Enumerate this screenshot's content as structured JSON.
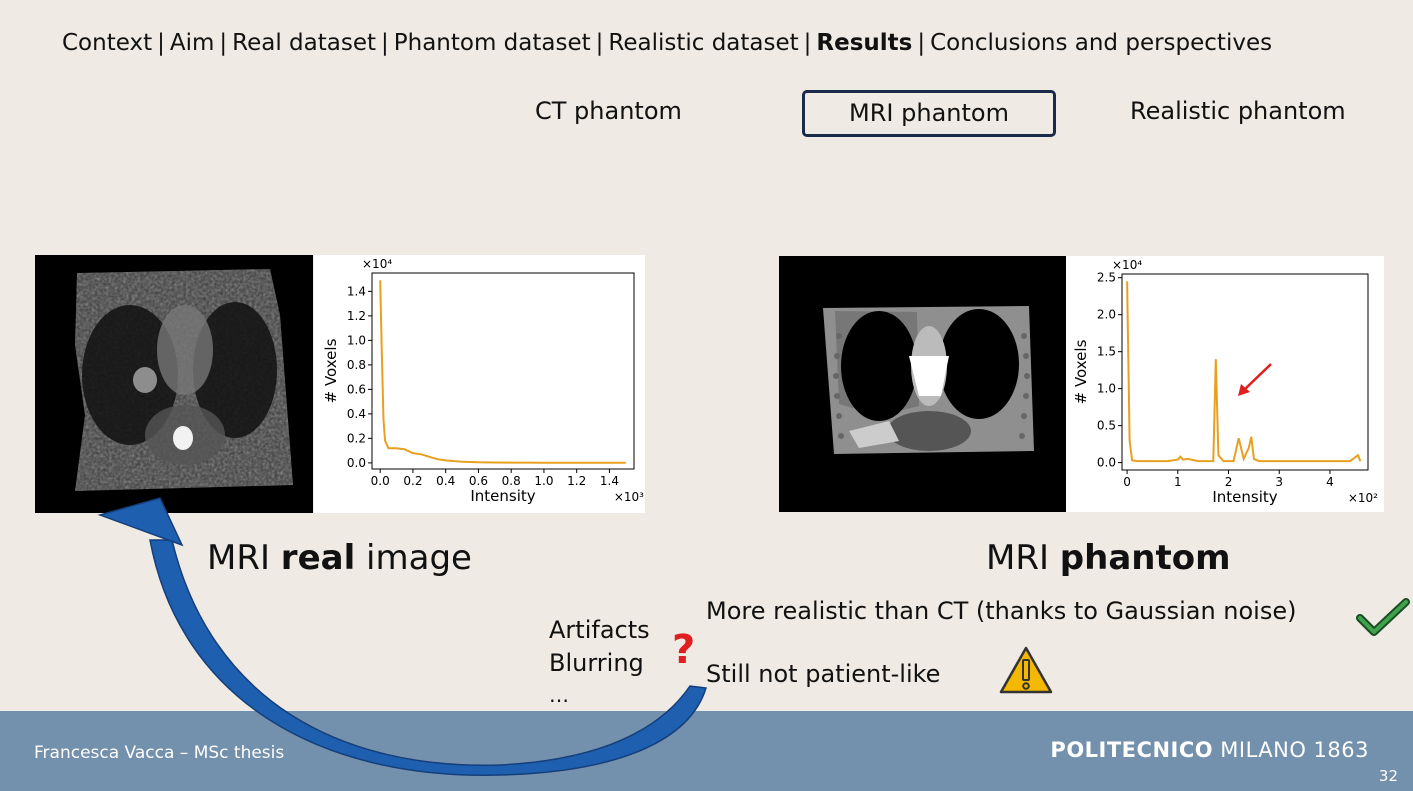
{
  "nav": {
    "items": [
      "Context",
      "Aim",
      "Real dataset",
      "Phantom dataset",
      "Realistic dataset",
      "Results",
      "Conclusions and perspectives"
    ],
    "separator": "|",
    "active": "Results"
  },
  "subtabs": {
    "ct": "CT phantom",
    "mri": "MRI phantom",
    "realistic": "Realistic phantom",
    "active": "MRI phantom"
  },
  "captions": {
    "left_pre": "MRI ",
    "left_bold": "real",
    "left_post": " image",
    "right_pre": "MRI ",
    "right_bold": "phantom"
  },
  "notes": {
    "artifacts": "Artifacts",
    "blurring": "Blurring",
    "ellipsis": "…",
    "question_mark": "?",
    "realistic": "More realistic than CT (thanks to Gaussian noise)",
    "not_patient": "Still not patient-like"
  },
  "icons": [
    "checkmark-icon",
    "warning-icon",
    "curved-arrow-icon",
    "red-arrow-icon"
  ],
  "colors": {
    "series": "#e8a020",
    "footer": "#7390ac",
    "check": "#2e8b3e",
    "warning": "#f5b800",
    "arrow_blue": "#1f5fb0",
    "question": "#e02020"
  },
  "footer": {
    "author": "Francesca Vacca – MSc thesis",
    "logo_bold": "POLITECNICO",
    "logo_rest": " MILANO 1863",
    "page": "32"
  },
  "chart_data": [
    {
      "type": "line",
      "title": "",
      "xlabel": "Intensity",
      "ylabel": "# Voxels",
      "x_multiplier": "×10³",
      "y_multiplier": "×10⁴",
      "xlim": [
        -0.05,
        1.55
      ],
      "ylim": [
        -0.05,
        1.55
      ],
      "xticks": [
        0.0,
        0.2,
        0.4,
        0.6,
        0.8,
        1.0,
        1.2,
        1.4
      ],
      "xtick_labels": [
        "0.0",
        "0.2",
        "0.4",
        "0.6",
        "0.8",
        "1.0",
        "1.2",
        "1.4"
      ],
      "yticks": [
        0.0,
        0.2,
        0.4,
        0.6,
        0.8,
        1.0,
        1.2,
        1.4
      ],
      "ytick_labels": [
        "0.0",
        "0.2",
        "0.4",
        "0.6",
        "0.8",
        "1.0",
        "1.2",
        "1.4"
      ],
      "grid": false,
      "series": [
        {
          "x": [
            0.0,
            0.01,
            0.02,
            0.03,
            0.05,
            0.08,
            0.1,
            0.15,
            0.2,
            0.25,
            0.3,
            0.35,
            0.4,
            0.5,
            0.6,
            0.7,
            0.8,
            0.9,
            1.0,
            1.1,
            1.2,
            1.3,
            1.4,
            1.5
          ],
          "y": [
            1.49,
            0.9,
            0.35,
            0.18,
            0.12,
            0.12,
            0.12,
            0.11,
            0.08,
            0.07,
            0.05,
            0.03,
            0.02,
            0.01,
            0.005,
            0.003,
            0.002,
            0.002,
            0.001,
            0.001,
            0.001,
            0.001,
            0.001,
            0.001
          ]
        }
      ]
    },
    {
      "type": "line",
      "title": "",
      "xlabel": "Intensity",
      "ylabel": "# Voxels",
      "x_multiplier": "×10²",
      "y_multiplier": "×10⁴",
      "xlim": [
        -0.1,
        4.75
      ],
      "ylim": [
        -0.1,
        2.55
      ],
      "xticks": [
        0,
        1,
        2,
        3,
        4
      ],
      "xtick_labels": [
        "0",
        "1",
        "2",
        "3",
        "4"
      ],
      "yticks": [
        0.0,
        0.5,
        1.0,
        1.5,
        2.0,
        2.5
      ],
      "ytick_labels": [
        "0.0",
        "0.5",
        "1.0",
        "1.5",
        "2.0",
        "2.5"
      ],
      "grid": false,
      "series": [
        {
          "x": [
            0.0,
            0.05,
            0.1,
            0.2,
            0.4,
            0.6,
            0.8,
            1.0,
            1.05,
            1.1,
            1.2,
            1.4,
            1.6,
            1.7,
            1.75,
            1.8,
            1.9,
            2.0,
            2.1,
            2.2,
            2.3,
            2.4,
            2.45,
            2.5,
            2.6,
            3.0,
            3.5,
            4.0,
            4.4,
            4.55,
            4.6
          ],
          "y": [
            2.45,
            0.3,
            0.03,
            0.02,
            0.02,
            0.02,
            0.02,
            0.04,
            0.08,
            0.04,
            0.05,
            0.02,
            0.02,
            0.02,
            1.4,
            0.1,
            0.02,
            0.02,
            0.02,
            0.33,
            0.05,
            0.2,
            0.35,
            0.05,
            0.02,
            0.02,
            0.02,
            0.02,
            0.02,
            0.1,
            0.02
          ]
        }
      ]
    }
  ]
}
